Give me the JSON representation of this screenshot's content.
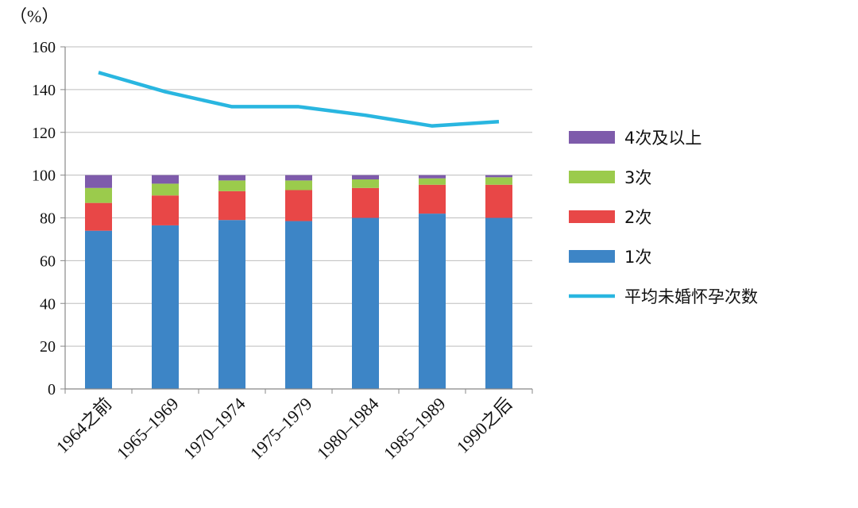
{
  "chart_data": {
    "type": "bar",
    "stacked": true,
    "unit_label": "（%）",
    "categories": [
      "1964之前",
      "1965–1969",
      "1970–1974",
      "1975–1979",
      "1980–1984",
      "1985–1989",
      "1990之后"
    ],
    "series": [
      {
        "name": "1次",
        "color": "#3d85c6",
        "values": [
          74,
          76.5,
          79,
          78.5,
          80,
          82,
          80
        ]
      },
      {
        "name": "2次",
        "color": "#e84747",
        "values": [
          13,
          14,
          13.5,
          14.5,
          14,
          13.5,
          15.5
        ]
      },
      {
        "name": "3次",
        "color": "#9bcb4c",
        "values": [
          7,
          5.5,
          5,
          4.5,
          4,
          3,
          3.5
        ]
      },
      {
        "name": "4次及以上",
        "color": "#7e5bab",
        "values": [
          6,
          4,
          2.5,
          2.5,
          2,
          1.5,
          1
        ]
      }
    ],
    "line_series": {
      "name": "平均未婚怀孕次数",
      "color": "#29b6e0",
      "values": [
        148,
        139,
        132,
        132,
        128,
        123,
        125
      ]
    },
    "ylim": [
      0,
      160
    ],
    "yticks": [
      0,
      20,
      40,
      60,
      80,
      100,
      120,
      140,
      160
    ],
    "grid": true,
    "legend": "right"
  }
}
